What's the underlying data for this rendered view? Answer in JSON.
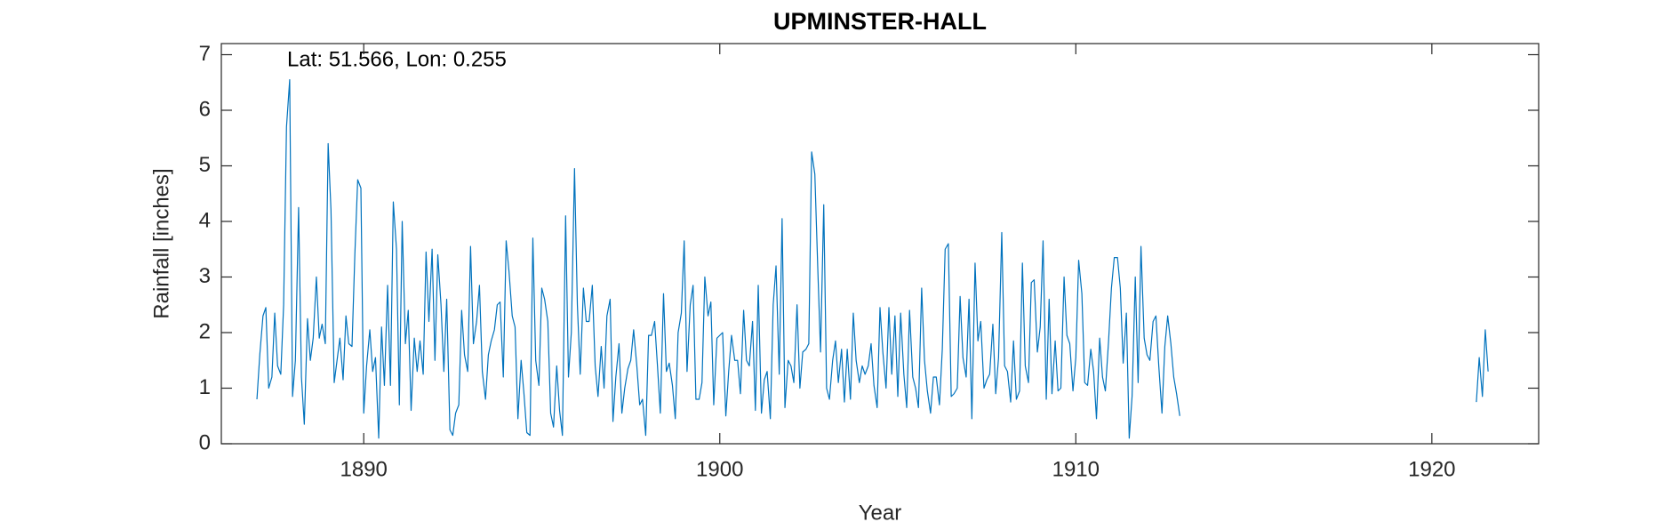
{
  "chart_data": {
    "type": "line",
    "title": "UPMINSTER-HALL",
    "annotation": "Lat: 51.566, Lon: 0.255",
    "xlabel": "Year",
    "ylabel": "Rainfall [inches]",
    "xlim": [
      1886,
      1923
    ],
    "xticks": [
      1890,
      1900,
      1910,
      1920
    ],
    "ylim": [
      0,
      7.2
    ],
    "yticks": [
      0,
      1,
      2,
      3,
      4,
      5,
      6,
      7
    ],
    "grid": false,
    "x": [
      1887.0,
      1887.08,
      1887.17,
      1887.25,
      1887.33,
      1887.42,
      1887.5,
      1887.58,
      1887.67,
      1887.75,
      1887.83,
      1887.92,
      1888.0,
      1888.08,
      1888.17,
      1888.25,
      1888.33,
      1888.42,
      1888.5,
      1888.58,
      1888.67,
      1888.75,
      1888.83,
      1888.92,
      1889.0,
      1889.08,
      1889.17,
      1889.25,
      1889.33,
      1889.42,
      1889.5,
      1889.58,
      1889.67,
      1889.75,
      1889.83,
      1889.92,
      1890.0,
      1890.08,
      1890.17,
      1890.25,
      1890.33,
      1890.42,
      1890.5,
      1890.58,
      1890.67,
      1890.75,
      1890.83,
      1890.92,
      1891.0,
      1891.08,
      1891.17,
      1891.25,
      1891.33,
      1891.42,
      1891.5,
      1891.58,
      1891.67,
      1891.75,
      1891.83,
      1891.92,
      1892.0,
      1892.08,
      1892.17,
      1892.25,
      1892.33,
      1892.42,
      1892.5,
      1892.58,
      1892.67,
      1892.75,
      1892.83,
      1892.92,
      1893.0,
      1893.08,
      1893.17,
      1893.25,
      1893.33,
      1893.42,
      1893.5,
      1893.58,
      1893.67,
      1893.75,
      1893.83,
      1893.92,
      1894.0,
      1894.08,
      1894.17,
      1894.25,
      1894.33,
      1894.42,
      1894.5,
      1894.58,
      1894.67,
      1894.75,
      1894.83,
      1894.92,
      1895.0,
      1895.08,
      1895.17,
      1895.25,
      1895.33,
      1895.42,
      1895.5,
      1895.58,
      1895.67,
      1895.75,
      1895.83,
      1895.92,
      1896.0,
      1896.08,
      1896.17,
      1896.25,
      1896.33,
      1896.42,
      1896.5,
      1896.58,
      1896.67,
      1896.75,
      1896.83,
      1896.92,
      1897.0,
      1897.08,
      1897.17,
      1897.25,
      1897.33,
      1897.42,
      1897.5,
      1897.58,
      1897.67,
      1897.75,
      1897.83,
      1897.92,
      1898.0,
      1898.08,
      1898.17,
      1898.25,
      1898.33,
      1898.42,
      1898.5,
      1898.58,
      1898.67,
      1898.75,
      1898.83,
      1898.92,
      1899.0,
      1899.08,
      1899.17,
      1899.25,
      1899.33,
      1899.42,
      1899.5,
      1899.58,
      1899.67,
      1899.75,
      1899.83,
      1899.92,
      1900.0,
      1900.08,
      1900.17,
      1900.25,
      1900.33,
      1900.42,
      1900.5,
      1900.58,
      1900.67,
      1900.75,
      1900.83,
      1900.92,
      1901.0,
      1901.08,
      1901.17,
      1901.25,
      1901.33,
      1901.42,
      1901.5,
      1901.58,
      1901.67,
      1901.75,
      1901.83,
      1901.92,
      1902.0,
      1902.08,
      1902.17,
      1902.25,
      1902.33,
      1902.42,
      1902.5,
      1902.58,
      1902.67,
      1902.75,
      1902.83,
      1902.92,
      1903.0,
      1903.08,
      1903.17,
      1903.25,
      1903.33,
      1903.42,
      1903.5,
      1903.58,
      1903.67,
      1903.75,
      1903.83,
      1903.92,
      1904.0,
      1904.08,
      1904.17,
      1904.25,
      1904.33,
      1904.42,
      1904.5,
      1904.58,
      1904.67,
      1904.75,
      1904.83,
      1904.92,
      1905.0,
      1905.08,
      1905.17,
      1905.25,
      1905.33,
      1905.42,
      1905.5,
      1905.58,
      1905.67,
      1905.75,
      1905.83,
      1905.92,
      1906.0,
      1906.08,
      1906.17,
      1906.25,
      1906.33,
      1906.42,
      1906.5,
      1906.58,
      1906.67,
      1906.75,
      1906.83,
      1906.92,
      1907.0,
      1907.08,
      1907.17,
      1907.25,
      1907.33,
      1907.42,
      1907.5,
      1907.58,
      1907.67,
      1907.75,
      1907.83,
      1907.92,
      1908.0,
      1908.08,
      1908.17,
      1908.25,
      1908.33,
      1908.42,
      1908.5,
      1908.58,
      1908.67,
      1908.75,
      1908.83,
      1908.92,
      1909.0,
      1909.08,
      1909.17,
      1909.25,
      1909.33,
      1909.42,
      1909.5,
      1909.58,
      1909.67,
      1909.75,
      1909.83,
      1909.92,
      1910.0,
      1910.08,
      1910.17,
      1910.25,
      1910.33,
      1910.42,
      1910.5,
      1910.58,
      1910.67,
      1910.75,
      1910.83,
      1910.92,
      1911.0,
      1911.08,
      1911.17,
      1911.25,
      1911.33,
      1911.42,
      1911.5,
      1911.58,
      1911.67,
      1911.75,
      1911.83,
      1911.92,
      1912.0,
      1912.08,
      1912.17,
      1912.25,
      1912.33,
      1912.42,
      1912.5,
      1912.58,
      1912.67,
      1912.75,
      1912.83,
      1912.92,
      1913.0,
      1921.25,
      1921.33,
      1921.42,
      1921.5,
      1921.58
    ],
    "series": [
      {
        "color": "#0072bd",
        "values": [
          0.8,
          1.6,
          2.3,
          2.45,
          1.0,
          1.2,
          2.35,
          1.4,
          1.25,
          2.5,
          5.7,
          6.55,
          0.85,
          1.5,
          4.25,
          1.2,
          0.35,
          2.25,
          1.5,
          1.9,
          3.0,
          1.9,
          2.15,
          1.8,
          5.4,
          4.2,
          1.1,
          1.5,
          1.9,
          1.15,
          2.3,
          1.8,
          1.75,
          3.4,
          4.75,
          4.6,
          0.55,
          1.4,
          2.05,
          1.3,
          1.55,
          0.1,
          2.1,
          1.05,
          2.85,
          1.05,
          4.35,
          3.5,
          0.7,
          4.0,
          1.8,
          2.4,
          0.6,
          1.9,
          1.3,
          1.85,
          1.25,
          3.45,
          2.2,
          3.5,
          1.5,
          3.4,
          2.5,
          1.3,
          2.6,
          0.25,
          0.15,
          0.55,
          0.7,
          2.4,
          1.6,
          1.3,
          3.55,
          1.8,
          2.2,
          2.85,
          1.3,
          0.8,
          1.6,
          1.85,
          2.05,
          2.5,
          2.55,
          1.2,
          3.65,
          3.1,
          2.3,
          2.1,
          0.45,
          1.5,
          0.9,
          0.2,
          0.15,
          3.7,
          1.5,
          1.05,
          2.8,
          2.6,
          2.2,
          0.55,
          0.3,
          1.4,
          0.6,
          0.15,
          4.1,
          1.2,
          2.0,
          4.95,
          2.5,
          1.25,
          2.8,
          2.2,
          2.2,
          2.85,
          1.4,
          0.85,
          1.75,
          1.0,
          2.3,
          2.6,
          0.4,
          1.2,
          1.8,
          0.55,
          1.0,
          1.35,
          1.5,
          2.05,
          1.4,
          0.7,
          0.8,
          0.15,
          1.95,
          1.95,
          2.2,
          1.4,
          0.55,
          2.7,
          1.3,
          1.45,
          1.05,
          0.45,
          2.0,
          2.35,
          3.65,
          1.3,
          2.5,
          2.85,
          0.8,
          0.8,
          1.1,
          3.0,
          2.3,
          2.55,
          0.7,
          1.9,
          1.95,
          2.0,
          0.5,
          1.3,
          1.95,
          1.5,
          1.5,
          0.9,
          2.4,
          1.5,
          1.4,
          2.2,
          0.6,
          2.85,
          0.55,
          1.15,
          1.3,
          0.45,
          2.5,
          3.2,
          1.25,
          4.05,
          0.65,
          1.5,
          1.4,
          1.1,
          2.5,
          1.0,
          1.65,
          1.7,
          1.8,
          5.25,
          4.85,
          3.2,
          1.65,
          4.3,
          1.0,
          0.8,
          1.5,
          1.85,
          1.1,
          1.7,
          0.75,
          1.7,
          0.8,
          2.35,
          1.5,
          1.1,
          1.4,
          1.25,
          1.4,
          1.8,
          1.05,
          0.65,
          2.45,
          1.65,
          1.0,
          2.45,
          1.25,
          2.3,
          0.85,
          2.35,
          1.25,
          0.65,
          2.4,
          1.2,
          1.0,
          0.65,
          2.8,
          1.5,
          0.95,
          0.55,
          1.2,
          1.2,
          0.7,
          1.7,
          3.5,
          3.6,
          0.85,
          0.9,
          1.0,
          2.65,
          1.55,
          1.2,
          2.6,
          0.45,
          3.25,
          1.85,
          2.2,
          1.0,
          1.15,
          1.25,
          2.15,
          0.9,
          1.55,
          3.8,
          1.4,
          1.3,
          0.75,
          1.85,
          0.8,
          0.95,
          3.25,
          1.4,
          1.1,
          2.9,
          2.95,
          1.65,
          2.1,
          3.65,
          0.8,
          2.6,
          0.9,
          1.85,
          0.95,
          1.0,
          3.0,
          1.95,
          1.8,
          0.95,
          1.55,
          3.3,
          2.7,
          1.1,
          1.05,
          1.7,
          1.3,
          0.45,
          1.9,
          1.2,
          0.95,
          1.85,
          2.8,
          3.35,
          3.35,
          2.8,
          1.45,
          2.35,
          0.1,
          0.85,
          3.0,
          1.1,
          3.55,
          1.9,
          1.6,
          1.5,
          2.2,
          2.3,
          1.4,
          0.55,
          1.75,
          2.3,
          1.8,
          1.2,
          0.9,
          0.5,
          null,
          0.75,
          1.55,
          0.85,
          2.05,
          1.3
        ]
      }
    ]
  }
}
